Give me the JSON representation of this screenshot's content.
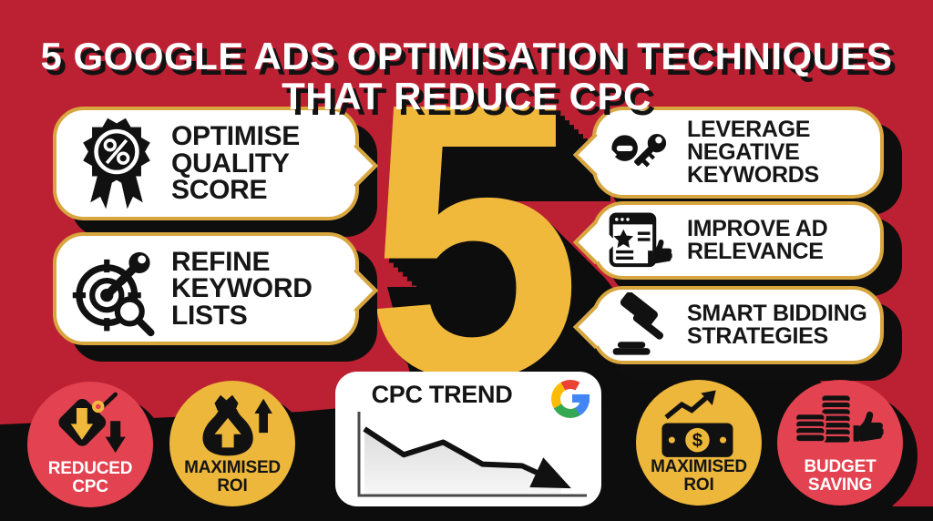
{
  "title": {
    "line1": "5 GOOGLE ADS OPTIMISATION TECHNIQUES",
    "line2": "THAT REDUCE CPC"
  },
  "center": {
    "big_number": "5"
  },
  "techniques": {
    "left": [
      {
        "name": "optimise-quality-score",
        "lines": [
          "OPTIMISE",
          "QUALITY",
          "SCORE"
        ]
      },
      {
        "name": "refine-keyword-lists",
        "lines": [
          "REFINE",
          "KEYWORD",
          "LISTS"
        ]
      }
    ],
    "right": [
      {
        "name": "leverage-negative-keywords",
        "lines": [
          "LEVERAGE",
          "NEGATIVE",
          "KEYWORDS"
        ]
      },
      {
        "name": "improve-ad-relevance",
        "lines": [
          "IMPROVE AD",
          "RELEVANCE"
        ]
      },
      {
        "name": "smart-bidding-strategies",
        "lines": [
          "SMART BIDDING",
          "STRATEGIES"
        ]
      }
    ]
  },
  "outcome_badges": [
    {
      "name": "reduced-cpc",
      "lines": [
        "REDUCED",
        "CPC"
      ],
      "color": "red"
    },
    {
      "name": "maximised-roi-1",
      "lines": [
        "MAXIMISED",
        "ROI"
      ],
      "color": "gold"
    },
    {
      "name": "maximised-roi-2",
      "lines": [
        "MAXIMISED",
        "ROI"
      ],
      "color": "gold"
    },
    {
      "name": "budget-saving",
      "lines": [
        "BUDGET",
        "SAVING"
      ],
      "color": "red"
    }
  ],
  "trend_panel": {
    "title": "CPC TREND",
    "brand": "Google"
  },
  "icons": {
    "currency_symbol": "$"
  },
  "chart_data": {
    "type": "line",
    "title": "CPC TREND",
    "x": [
      0,
      1,
      2,
      3,
      4,
      5
    ],
    "values": [
      85,
      52,
      68,
      40,
      38,
      15
    ],
    "ylim": [
      0,
      100
    ],
    "xlabel": "",
    "ylabel": "",
    "axis_ticks_visible": false,
    "grid": false,
    "legend": false,
    "area_fill": true,
    "trend": "downward",
    "end_annotation": "arrowhead pointing down-right"
  },
  "colors": {
    "background_red": "#BC2133",
    "badge_red": "#E34350",
    "accent_gold": "#F0B93B",
    "border_gold": "#D8A63F",
    "black": "#0d0d0d",
    "white": "#FFFFFF",
    "google_blue": "#4285F4",
    "google_red": "#EA4335",
    "google_yellow": "#FBBC05",
    "google_green": "#34A853"
  }
}
